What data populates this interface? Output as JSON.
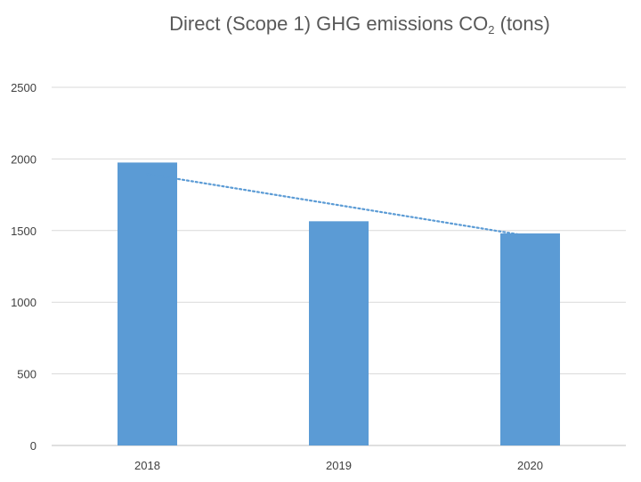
{
  "chart_data": {
    "type": "bar",
    "title_main": "Direct (Scope 1) GHG emissions CO",
    "title_subscript": "2",
    "title_suffix": " (tons)",
    "categories": [
      "2018",
      "2019",
      "2020"
    ],
    "values": [
      1975,
      1565,
      1480
    ],
    "y_ticks": [
      "0",
      "500",
      "1000",
      "1500",
      "2000",
      "2500"
    ],
    "ylim": [
      0,
      2500
    ],
    "grid": true,
    "bar_color": "#5b9bd5",
    "gridline_color": "#d9d9d9",
    "trendline": {
      "type": "linear",
      "style": "dotted",
      "color": "#5b9bd5",
      "start": 1895,
      "end": 1460
    }
  }
}
